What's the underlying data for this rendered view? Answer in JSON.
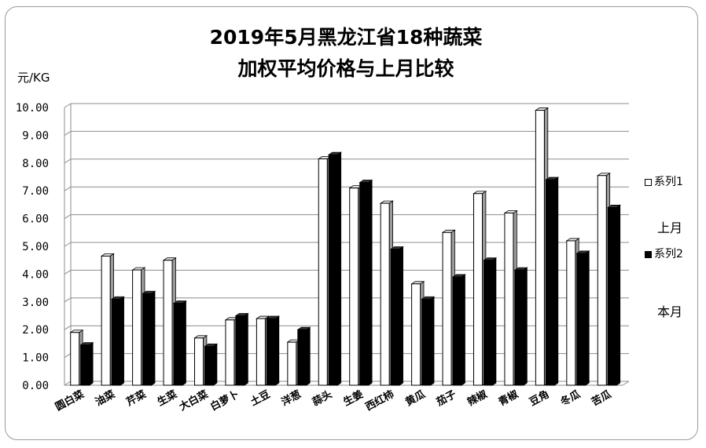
{
  "chart_data": {
    "type": "bar",
    "title_line1": "2019年5月黑龙江省18种蔬菜",
    "title_line2": "加权平均价格与上月比较",
    "ylabel": "元/KG",
    "ylim": [
      0,
      10
    ],
    "yticks": [
      "0.00",
      "1.00",
      "2.00",
      "3.00",
      "4.00",
      "5.00",
      "6.00",
      "7.00",
      "8.00",
      "9.00",
      "10.00"
    ],
    "grid": true,
    "legend_position": "right",
    "categories": [
      "圆白菜",
      "油菜",
      "芹菜",
      "生菜",
      "大白菜",
      "白萝卜",
      "土豆",
      "洋葱",
      "蒜头",
      "生姜",
      "西红柿",
      "黄瓜",
      "茄子",
      "辣椒",
      "青椒",
      "豆角",
      "冬瓜",
      "苦瓜"
    ],
    "series": [
      {
        "name": "系列1",
        "note": "上月",
        "color": "#ffffff",
        "values": [
          1.9,
          4.65,
          4.15,
          4.5,
          1.7,
          2.35,
          2.4,
          1.55,
          8.15,
          7.1,
          6.55,
          3.65,
          5.5,
          6.9,
          6.2,
          9.9,
          5.2,
          7.55
        ]
      },
      {
        "name": "系列2",
        "note": "本月",
        "color": "#000000",
        "values": [
          1.45,
          3.1,
          3.3,
          2.95,
          1.4,
          2.5,
          2.4,
          2.0,
          8.3,
          7.3,
          4.9,
          3.1,
          3.9,
          4.5,
          4.15,
          7.4,
          4.75,
          6.4
        ]
      }
    ]
  }
}
